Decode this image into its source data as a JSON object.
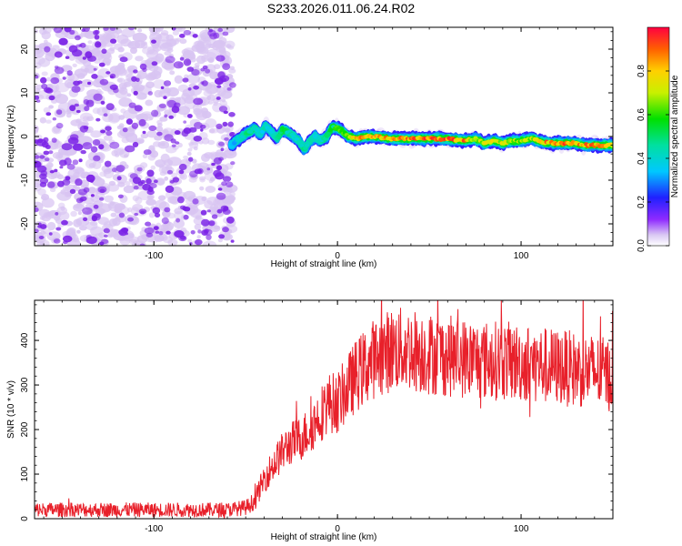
{
  "title": "S233.2026.011.06.24.R02",
  "colors": {
    "snr_line": "#e8202a",
    "speckle_light": "#d8c4f2",
    "speckle_dark": "#7a22e6"
  },
  "chart_data": [
    {
      "type": "heatmap",
      "name": "spectrogram",
      "xlabel": "Height of straight line (km)",
      "ylabel": "Frequency (Hz)",
      "xlim": [
        -165,
        150
      ],
      "ylim": [
        -25,
        25
      ],
      "xticks": [
        "-100",
        "0",
        "100"
      ],
      "xtick_values": [
        -100,
        0,
        100
      ],
      "yticks": [
        "-20",
        "-10",
        "0",
        "10",
        "20"
      ],
      "ytick_values": [
        -20,
        -10,
        0,
        10,
        20
      ],
      "noise_region_x": [
        -165,
        -57
      ],
      "ridge_x": [
        -58,
        -55,
        -52,
        -48,
        -45,
        -42,
        -39,
        -36,
        -33,
        -30,
        -27,
        -24,
        -21,
        -18,
        -15,
        -12,
        -9,
        -6,
        -3,
        0,
        3,
        6,
        10,
        15,
        20,
        30,
        40,
        50,
        60,
        70,
        75,
        80,
        85,
        90,
        95,
        100,
        105,
        110,
        115,
        120,
        125,
        130,
        135,
        140,
        145,
        150
      ],
      "ridge_freq": [
        -2,
        -1,
        0,
        1,
        2,
        0.5,
        2.5,
        1,
        -0.5,
        1.5,
        1,
        0,
        -1,
        -3,
        -1,
        0,
        -1,
        0,
        2,
        2,
        1,
        0,
        -0.5,
        0,
        0,
        -0.5,
        -0.5,
        -0.5,
        -0.5,
        -1,
        -0.5,
        -1.5,
        -1,
        -1.5,
        -1,
        -1,
        -0.5,
        -1,
        -1.5,
        -1.5,
        -1.5,
        -1.5,
        -2,
        -2,
        -2,
        -2
      ],
      "ridge_amp": [
        0.35,
        0.4,
        0.45,
        0.5,
        0.5,
        0.4,
        0.45,
        0.4,
        0.45,
        0.55,
        0.5,
        0.45,
        0.45,
        0.5,
        0.45,
        0.4,
        0.45,
        0.5,
        0.55,
        0.6,
        0.65,
        0.75,
        0.85,
        0.9,
        0.85,
        0.88,
        0.9,
        0.95,
        0.95,
        0.9,
        0.7,
        0.75,
        0.8,
        0.78,
        0.7,
        0.72,
        0.75,
        0.85,
        0.9,
        0.92,
        0.95,
        0.9,
        0.92,
        0.88,
        0.85,
        0.8
      ]
    },
    {
      "type": "line",
      "name": "snr",
      "xlabel": "Height of straight line (km)",
      "ylabel": "SNR (10 * v/v)",
      "xlim": [
        -165,
        150
      ],
      "ylim": [
        0,
        490
      ],
      "xticks": [
        "-100",
        "0",
        "100"
      ],
      "xtick_values": [
        -100,
        0,
        100
      ],
      "yticks": [
        "0",
        "100",
        "200",
        "300",
        "400"
      ],
      "ytick_values": [
        0,
        100,
        200,
        300,
        400
      ],
      "envelope_x": [
        -165,
        -60,
        -50,
        -45,
        -40,
        -35,
        -30,
        -25,
        -20,
        -15,
        -10,
        -5,
        0,
        5,
        10,
        15,
        20,
        25,
        30,
        40,
        50,
        60,
        70,
        80,
        90,
        100,
        110,
        120,
        130,
        140,
        150
      ],
      "envelope_y": [
        20,
        20,
        25,
        40,
        90,
        120,
        150,
        170,
        180,
        200,
        230,
        260,
        260,
        290,
        320,
        340,
        360,
        370,
        380,
        380,
        370,
        365,
        360,
        355,
        355,
        350,
        345,
        340,
        335,
        330,
        320
      ],
      "noise_amplitude": 12,
      "noise_growth": 0.22
    },
    {
      "type": "colorbar",
      "name": "colorbar",
      "label": "Normalized spectral amplitude",
      "range": [
        0,
        1
      ],
      "ticks": [
        "0.0",
        "0.2",
        "0.4",
        "0.6",
        "0.8"
      ],
      "tick_values": [
        0,
        0.2,
        0.4,
        0.6,
        0.8
      ]
    }
  ]
}
